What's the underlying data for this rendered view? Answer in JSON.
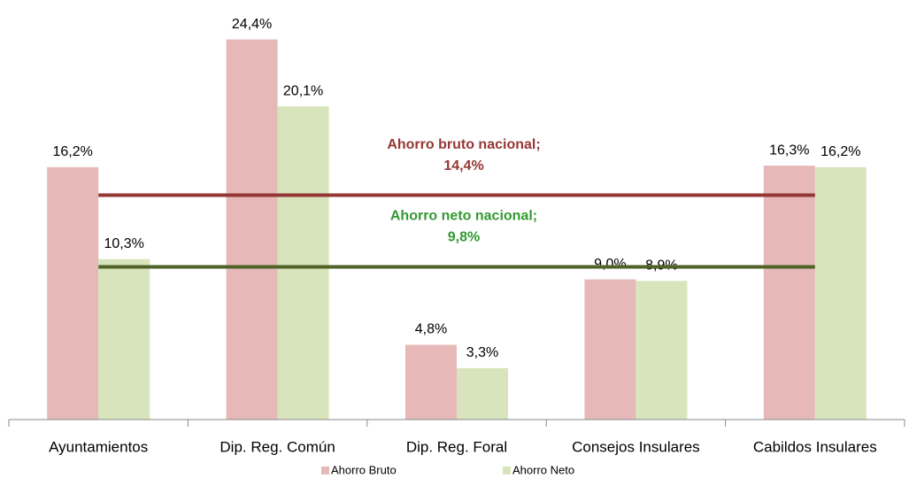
{
  "chart_data": {
    "type": "bar",
    "categories": [
      "Ayuntamientos",
      "Dip. Reg. Común",
      "Dip. Reg. Foral",
      "Consejos Insulares",
      "Cabildos Insulares"
    ],
    "series": [
      {
        "name": "Ahorro Bruto",
        "color": "#e6b9b8",
        "values": [
          16.2,
          24.4,
          4.8,
          9.0,
          16.3
        ],
        "value_labels": [
          "16,2%",
          "24,4%",
          "4,8%",
          "9,0%",
          "16,3%"
        ]
      },
      {
        "name": "Ahorro Neto",
        "color": "#d7e4bc",
        "values": [
          10.3,
          20.1,
          3.3,
          8.9,
          16.2
        ],
        "value_labels": [
          "10,3%",
          "20,1%",
          "3,3%",
          "8,9%",
          "16,2%"
        ]
      }
    ],
    "reference_lines": [
      {
        "label": "Ahorro bruto nacional;",
        "value": 14.4,
        "value_label": "14,4%",
        "color": "#943634",
        "text_color": "#953734"
      },
      {
        "label": "Ahorro neto nacional;",
        "value": 9.8,
        "value_label": "9,8%",
        "color": "#4f6228",
        "text_color": "#339933"
      }
    ],
    "ylim": [
      0,
      25
    ]
  }
}
